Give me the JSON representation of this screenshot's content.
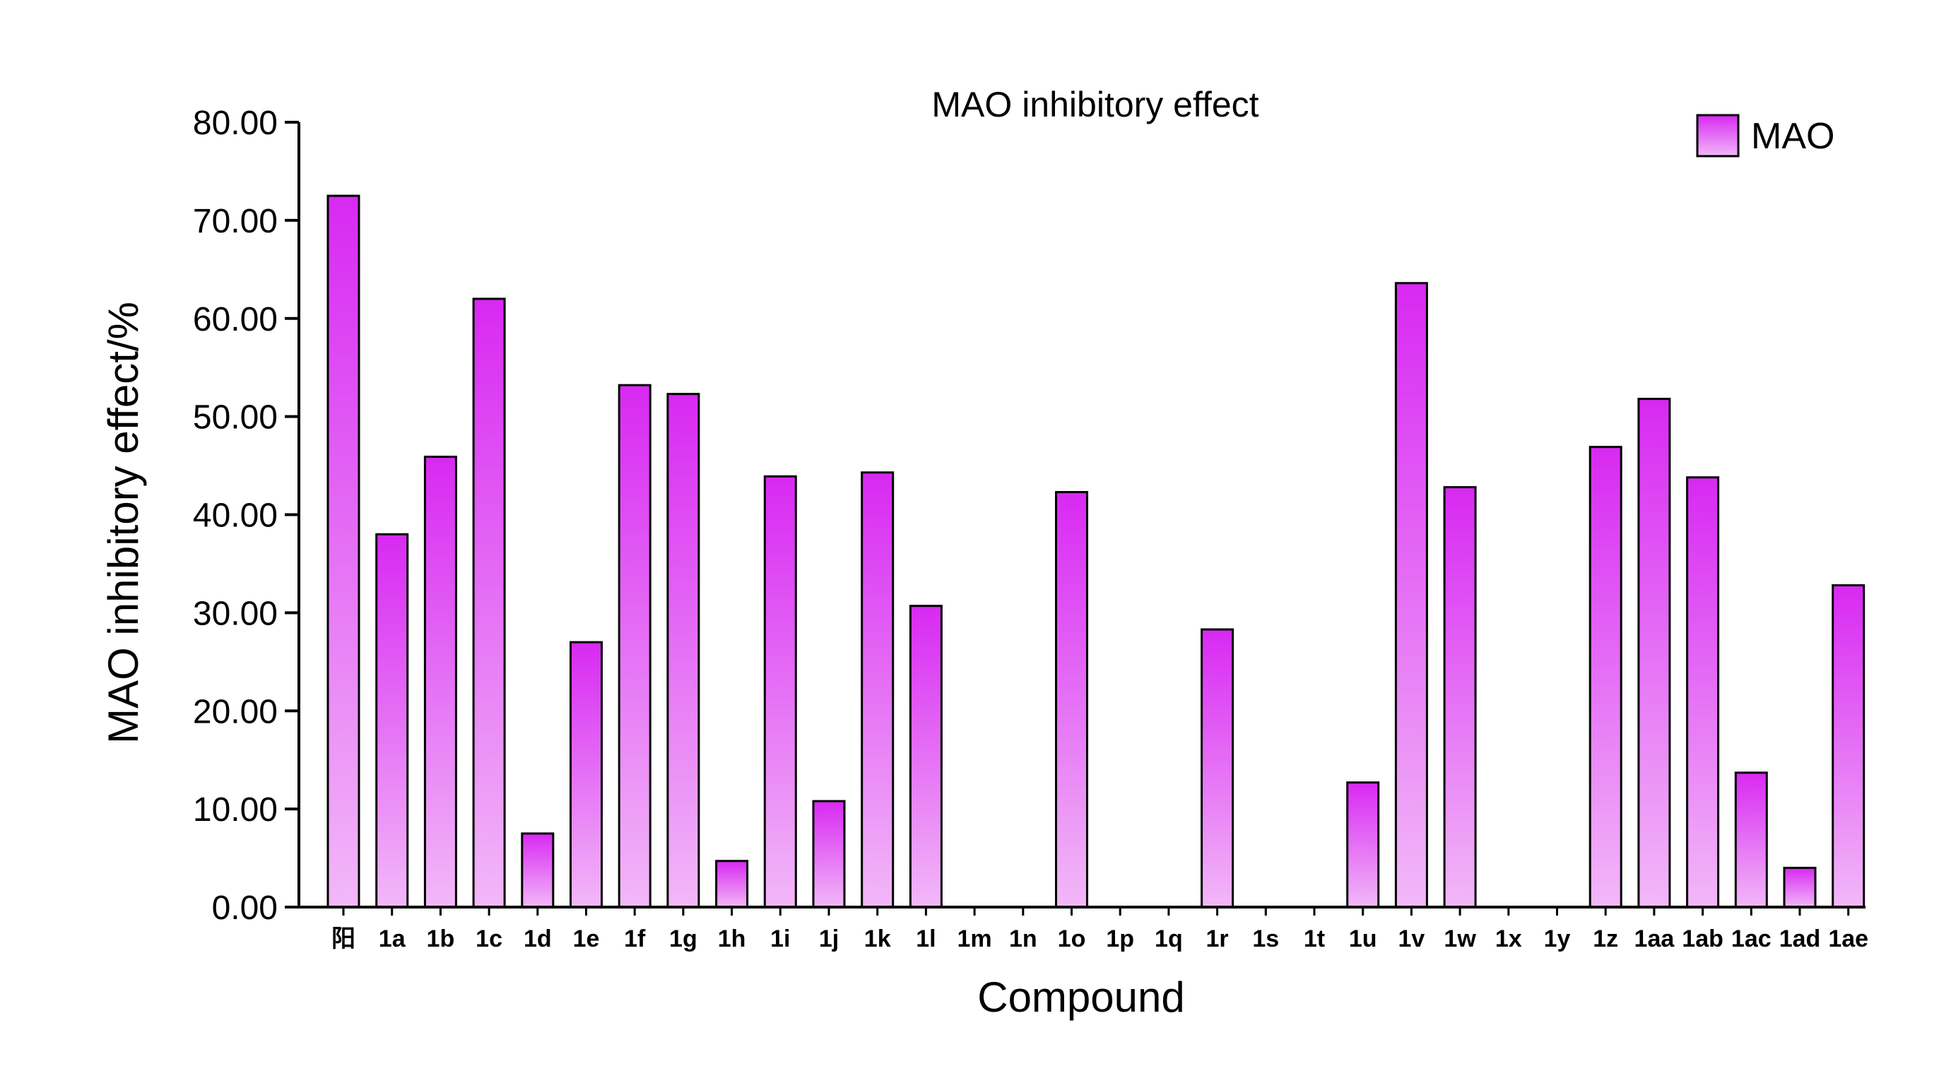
{
  "chart_data": {
    "type": "bar",
    "title": "MAO inhibitory effect",
    "xlabel": "Compound",
    "ylabel": "MAO inhibitory effect/%",
    "ylim": [
      0,
      80
    ],
    "yticks": [
      "0.00",
      "10.00",
      "20.00",
      "30.00",
      "40.00",
      "50.00",
      "60.00",
      "70.00",
      "80.00"
    ],
    "categories": [
      "阳",
      "1a",
      "1b",
      "1c",
      "1d",
      "1e",
      "1f",
      "1g",
      "1h",
      "1i",
      "1j",
      "1k",
      "1l",
      "1m",
      "1n",
      "1o",
      "1p",
      "1q",
      "1r",
      "1s",
      "1t",
      "1u",
      "1v",
      "1w",
      "1x",
      "1y",
      "1z",
      "1aa",
      "1ab",
      "1ac",
      "1ad",
      "1ae"
    ],
    "series": [
      {
        "name": "MAO",
        "values": [
          72.5,
          38.0,
          45.9,
          62.0,
          7.5,
          27.0,
          53.2,
          52.3,
          4.7,
          43.9,
          10.8,
          44.3,
          30.7,
          0,
          0,
          42.3,
          0,
          0,
          28.3,
          0,
          0,
          12.7,
          63.6,
          42.8,
          0,
          0,
          46.9,
          51.8,
          43.8,
          13.7,
          4.0,
          32.8
        ]
      }
    ],
    "legend": {
      "position": "top-right",
      "label": "MAO"
    },
    "colors": {
      "bar_top": "#d829f2",
      "bar_bottom": "#f2b8f8",
      "stroke": "#000000"
    }
  }
}
